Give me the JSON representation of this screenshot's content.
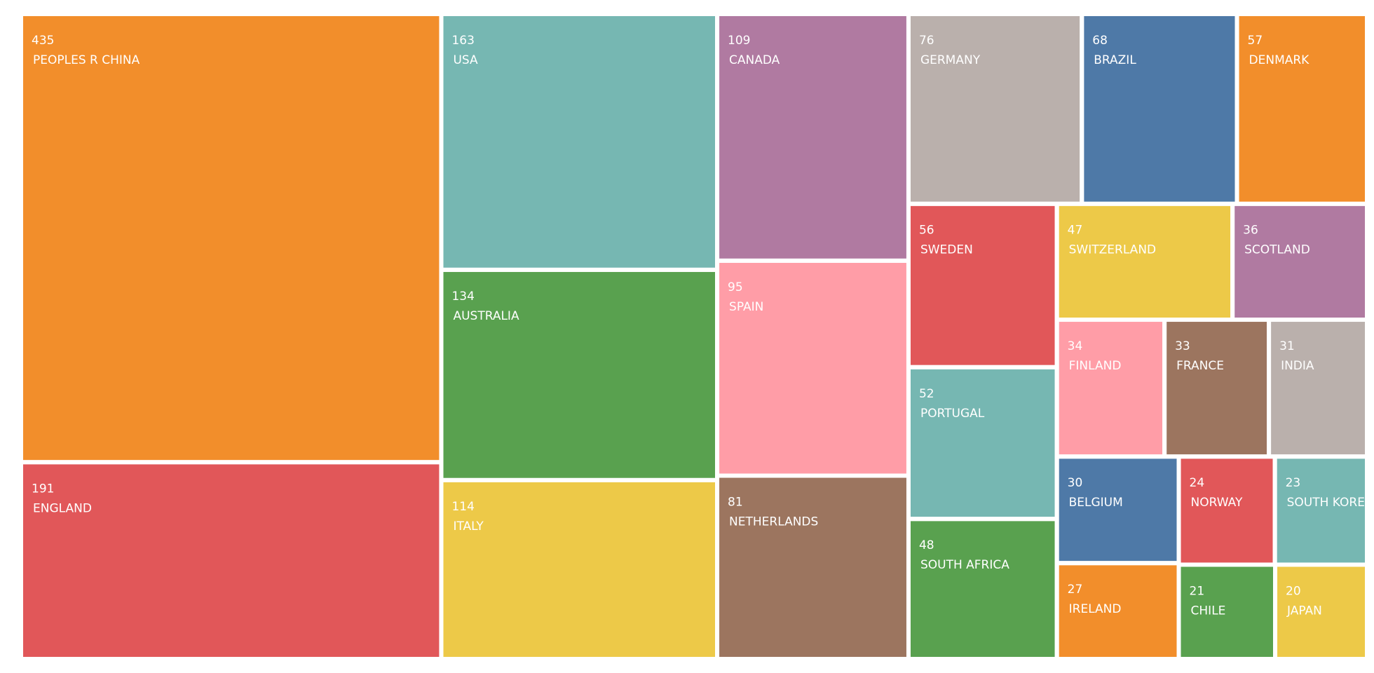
{
  "chart_data": {
    "type": "treemap",
    "categories": [
      "PEOPLES R CHINA",
      "ENGLAND",
      "USA",
      "AUSTRALIA",
      "ITALY",
      "CANADA",
      "SPAIN",
      "NETHERLANDS",
      "GERMANY",
      "BRAZIL",
      "DENMARK",
      "SWEDEN",
      "PORTUGAL",
      "SOUTH AFRICA",
      "SWITZERLAND",
      "SCOTLAND",
      "FINLAND",
      "FRANCE",
      "INDIA",
      "BELGIUM",
      "IRELAND",
      "NORWAY",
      "SOUTH KOREA",
      "CHILE",
      "JAPAN"
    ],
    "values": [
      435,
      191,
      163,
      134,
      114,
      109,
      95,
      81,
      76,
      68,
      57,
      56,
      52,
      48,
      47,
      36,
      34,
      33,
      31,
      30,
      27,
      24,
      23,
      21,
      20
    ],
    "colors": [
      "#f28e2b",
      "#e15759",
      "#76b7b2",
      "#59a14f",
      "#edc948",
      "#b07aa1",
      "#ff9da7",
      "#9c755f",
      "#bab0ac",
      "#4e79a7",
      "#f28e2b",
      "#e15759",
      "#76b7b2",
      "#59a14f",
      "#edc948",
      "#b07aa1",
      "#ff9da7",
      "#9c755f",
      "#bab0ac",
      "#4e79a7",
      "#f28e2b",
      "#e15759",
      "#76b7b2",
      "#59a14f",
      "#edc948"
    ]
  }
}
